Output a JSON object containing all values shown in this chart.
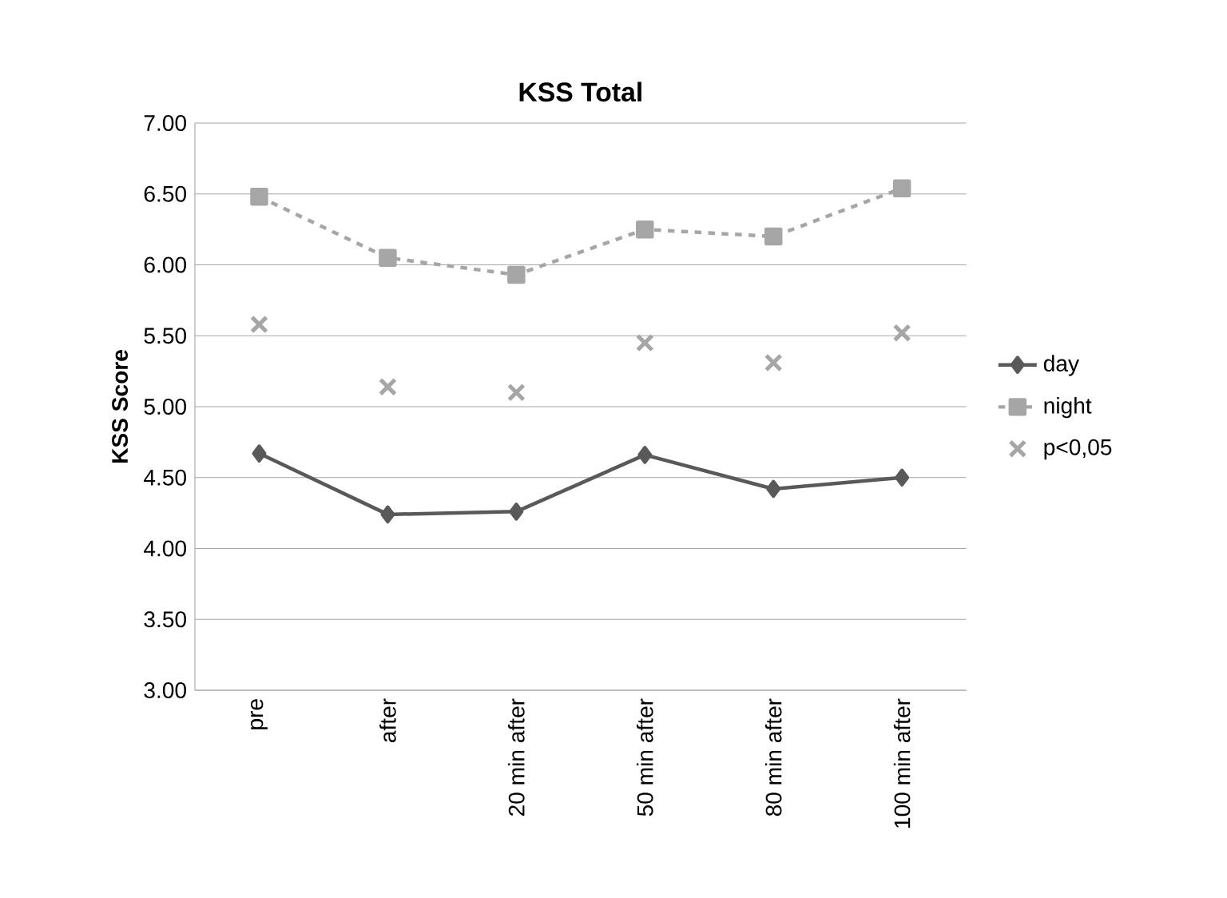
{
  "chart_data": {
    "type": "line",
    "title": "KSS Total",
    "ylabel": "KSS Score",
    "categories": [
      "pre",
      "after",
      "20 min after",
      "50 min after",
      "80 min after",
      "100 min after"
    ],
    "ylim": [
      3,
      7
    ],
    "yticks": [
      {
        "value": 3,
        "label": "3.00"
      },
      {
        "value": 3.5,
        "label": "3.50"
      },
      {
        "value": 4,
        "label": "4.00"
      },
      {
        "value": 4.5,
        "label": "4.50"
      },
      {
        "value": 5,
        "label": "5.00"
      },
      {
        "value": 5.5,
        "label": "5.50"
      },
      {
        "value": 6,
        "label": "6.00"
      },
      {
        "value": 6.5,
        "label": "6.50"
      },
      {
        "value": 7,
        "label": "7.00"
      }
    ],
    "grid": "y",
    "legend": "right",
    "series": [
      {
        "name": "day",
        "type": "line",
        "color": "#595959",
        "marker": "diamond",
        "line_style": "solid",
        "values": [
          4.67,
          4.24,
          4.26,
          4.66,
          4.42,
          4.5
        ]
      },
      {
        "name": "night",
        "type": "line",
        "color": "#a6a6a6",
        "marker": "square",
        "line_style": "dashed",
        "values": [
          6.48,
          6.05,
          5.93,
          6.25,
          6.2,
          6.54
        ]
      },
      {
        "name": "p<0,05",
        "type": "scatter",
        "color": "#a6a6a6",
        "marker": "cross",
        "values": [
          5.58,
          5.14,
          5.1,
          5.45,
          5.31,
          5.52
        ]
      }
    ]
  }
}
